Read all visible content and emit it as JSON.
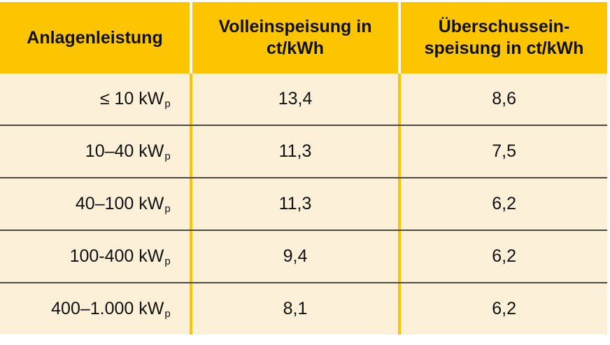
{
  "table": {
    "headers": [
      "Anlagenleistung",
      "Volleinspeisung in ct/kWh",
      "Überschusseinspeisung in ct/kWh"
    ],
    "header_display": {
      "col0_line1": "Anlagenleistung",
      "col1_line1": "Volleinspeisung in",
      "col1_line2": "ct/kWh",
      "col2_line1": "Überschussein-",
      "col2_line2": "speisung in ct/kWh"
    },
    "rows": [
      {
        "capacity": "≤ 10 kW",
        "unit_sub": "p",
        "full_feed_in": "13,4",
        "surplus_feed_in": "8,6"
      },
      {
        "capacity": "10–40 kW",
        "unit_sub": "p",
        "full_feed_in": "11,3",
        "surplus_feed_in": "7,5"
      },
      {
        "capacity": "40–100 kW",
        "unit_sub": "p",
        "full_feed_in": "11,3",
        "surplus_feed_in": "6,2"
      },
      {
        "capacity": "100-400 kW",
        "unit_sub": "p",
        "full_feed_in": "9,4",
        "surplus_feed_in": "6,2"
      },
      {
        "capacity": "400–1.000 kW",
        "unit_sub": "p",
        "full_feed_in": "8,1",
        "surplus_feed_in": "6,2"
      }
    ]
  },
  "colors": {
    "header_bg": "#FCC500",
    "body_bg": "#FCF1D8",
    "row_separator": "#4B4A40",
    "column_separator": "#FCC500"
  }
}
